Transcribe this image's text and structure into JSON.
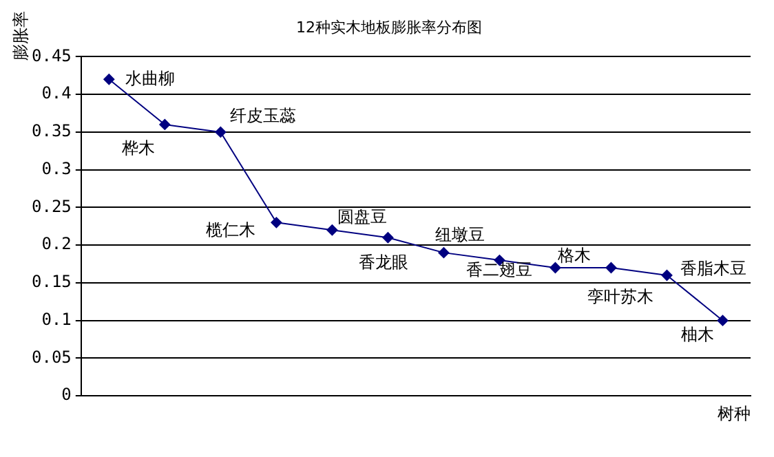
{
  "chart_data": {
    "type": "line",
    "title": "12种实木地板膨胀率分布图",
    "ylabel": "膨胀率",
    "xlabel": "树种",
    "categories": [
      null,
      null,
      null,
      null,
      null,
      null,
      null,
      null,
      null,
      null,
      null,
      null
    ],
    "series": [
      {
        "color": "#000080",
        "values": [
          0.42,
          0.36,
          0.35,
          0.23,
          0.22,
          0.21,
          0.19,
          0.18,
          0.17,
          0.17,
          0.16,
          0.1
        ]
      }
    ],
    "ylim": [
      0,
      0.45
    ],
    "yticks": [
      0,
      0.05,
      0.1,
      0.15,
      0.2,
      0.25,
      0.3,
      0.35,
      0.4,
      0.45
    ],
    "grid": "y",
    "legend": false,
    "marker": "diamond",
    "line_style": "solid",
    "annotations": [
      "水曲柳",
      "桦木",
      "纤皮玉蕊",
      "榄仁木",
      "圆盘豆",
      "香龙眼",
      "纽墩豆",
      "香二翅豆",
      "格木",
      "孪叶苏木",
      "香脂木豆",
      "柚木"
    ]
  }
}
